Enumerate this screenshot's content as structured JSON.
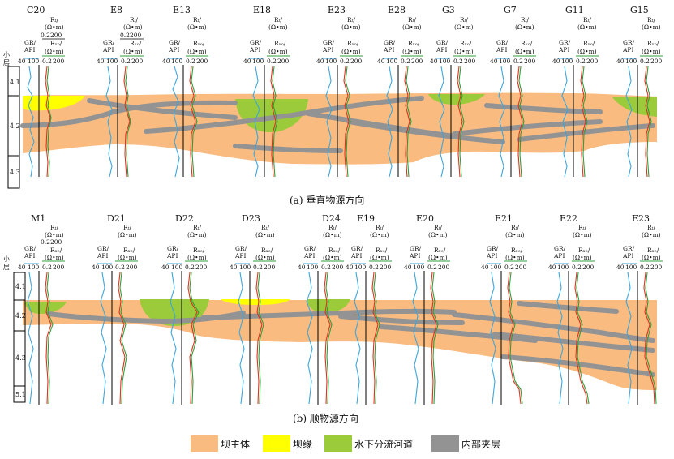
{
  "header_labels": {
    "gr": "GR/",
    "api": "API",
    "rt": "Rₜ/",
    "ohm": "(Ω•m)",
    "rxo": "Rₓₒ/",
    "gr_min": "40",
    "gr_max": "100",
    "r_min": "0.2",
    "r_max": "200",
    "layer_title_1": "小",
    "layer_title_2": "层"
  },
  "colors": {
    "dam_body": "#f9bb80",
    "dam_edge": "#ffff00",
    "channel": "#9bcb3a",
    "interlayer": "#939393",
    "gr_curve": "#3aa6dd",
    "rt_curve": "#e0301e",
    "rxo_curve": "#2e9e3a"
  },
  "panel_a": {
    "caption": "(a) 垂直物源方向",
    "wells": [
      "C20",
      "E8",
      "E13",
      "E18",
      "E23",
      "E28",
      "G3",
      "G7",
      "G11",
      "G15"
    ],
    "zones": [
      "4.1",
      "4.2",
      "4.3"
    ]
  },
  "panel_b": {
    "caption": "(b) 顺物源方向",
    "wells": [
      "M1",
      "D21",
      "D22",
      "D23",
      "D24",
      "E19",
      "E20",
      "E21",
      "E22",
      "E23"
    ],
    "zones": [
      "4.1",
      "4.2",
      "4.3",
      "5.1"
    ]
  },
  "legend": [
    {
      "label": "坝主体",
      "color": "#f9bb80"
    },
    {
      "label": "坝缘",
      "color": "#ffff00"
    },
    {
      "label": "水下分流河道",
      "color": "#9bcb3a"
    },
    {
      "label": "内部夹层",
      "color": "#939393"
    }
  ]
}
